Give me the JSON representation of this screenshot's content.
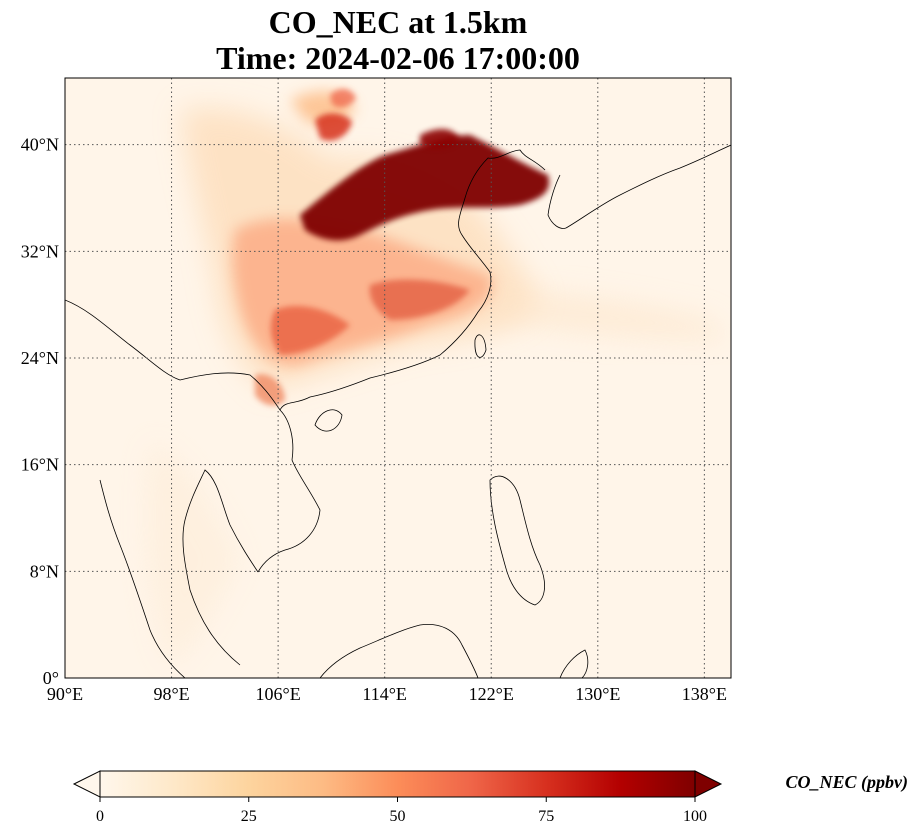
{
  "title": {
    "line1": "CO_NEC at 1.5km",
    "line2": "Time: 2024-02-06 17:00:00"
  },
  "map": {
    "lon_range": [
      90,
      140
    ],
    "lat_range": [
      0,
      45
    ],
    "lon_ticks": [
      {
        "value": 90,
        "label": "90°E"
      },
      {
        "value": 98,
        "label": "98°E"
      },
      {
        "value": 106,
        "label": "106°E"
      },
      {
        "value": 114,
        "label": "114°E"
      },
      {
        "value": 122,
        "label": "122°E"
      },
      {
        "value": 130,
        "label": "130°E"
      },
      {
        "value": 138,
        "label": "138°E"
      }
    ],
    "lat_ticks": [
      {
        "value": 0,
        "label": "0°"
      },
      {
        "value": 8,
        "label": "8°N"
      },
      {
        "value": 16,
        "label": "16°N"
      },
      {
        "value": 24,
        "label": "24°N"
      },
      {
        "value": 32,
        "label": "32°N"
      },
      {
        "value": 40,
        "label": "40°N"
      }
    ],
    "gridlines": true,
    "coastlines": true
  },
  "colorbar": {
    "title": "CO_NEC (ppbv)",
    "min": 0,
    "max": 100,
    "extend": "both",
    "colormap": "OrRd",
    "ticks": [
      {
        "value": 0,
        "label": "0"
      },
      {
        "value": 25,
        "label": "25"
      },
      {
        "value": 50,
        "label": "50"
      },
      {
        "value": 75,
        "label": "75"
      },
      {
        "value": 100,
        "label": "100"
      }
    ],
    "colors": [
      "#fff7ec",
      "#fee8c8",
      "#fdd49e",
      "#fdbb84",
      "#fc8d59",
      "#ef6548",
      "#d7301f",
      "#b30000",
      "#7f0000"
    ]
  }
}
